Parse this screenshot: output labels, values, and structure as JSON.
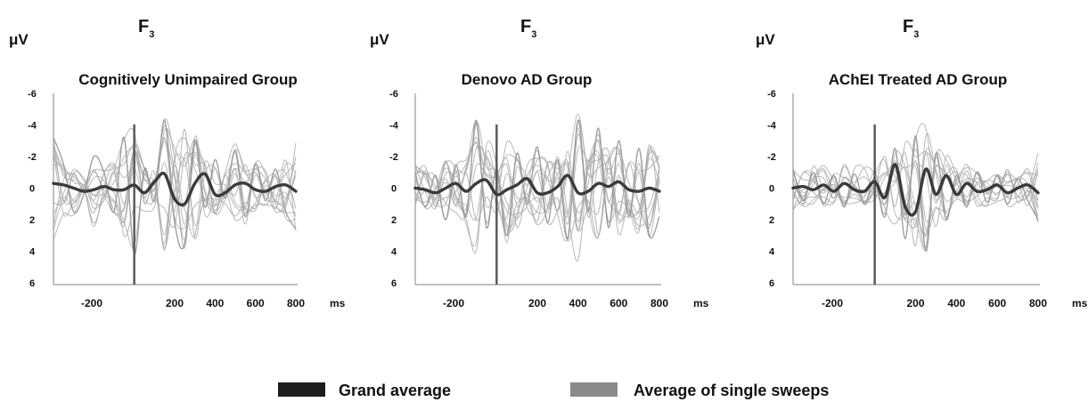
{
  "chart_data": [
    {
      "type": "line",
      "electrode_main": "F",
      "electrode_sub": "3",
      "ylabel": "μV",
      "xunit": "ms",
      "title": "Cognitively Unimpaired Group",
      "xlim": [
        -400,
        800
      ],
      "ylim": [
        6,
        -6
      ],
      "y_inverted": true,
      "x_ticks": [
        "-200",
        "200",
        "400",
        "600",
        "800"
      ],
      "y_ticks": [
        "-6",
        "-4",
        "-2",
        "0",
        "2",
        "4",
        "6"
      ],
      "stimulus_onset_ms": 0,
      "grid": false,
      "series": [
        {
          "name": "Grand average",
          "color": "#3a3a3a",
          "x": [
            -400,
            -350,
            -300,
            -250,
            -200,
            -150,
            -100,
            -50,
            0,
            50,
            100,
            150,
            200,
            250,
            300,
            350,
            400,
            450,
            500,
            550,
            600,
            650,
            700,
            750,
            800
          ],
          "y": [
            -0.3,
            -0.2,
            0.0,
            0.2,
            0.1,
            -0.1,
            0.1,
            0.1,
            -0.2,
            0.3,
            -0.4,
            -0.9,
            0.7,
            1.0,
            -0.3,
            -0.9,
            0.4,
            0.3,
            -0.2,
            -0.3,
            0.1,
            0.2,
            -0.1,
            -0.2,
            0.2
          ]
        },
        {
          "name": "Average of single sweeps",
          "color": "#9a9a9a",
          "x": [
            -400,
            -350,
            -300,
            -250,
            -200,
            -150,
            -100,
            -50,
            0,
            50,
            100,
            150,
            200,
            250,
            300,
            350,
            400,
            450,
            500,
            550,
            600,
            650,
            700,
            750,
            800
          ],
          "y": [
            -3.2,
            -1.5,
            1.5,
            0.4,
            -2.0,
            -1.0,
            1.5,
            -3.2,
            4.2,
            -1.2,
            0.8,
            -4.3,
            2.2,
            3.5,
            -3.0,
            1.2,
            -1.8,
            0.6,
            -2.3,
            1.8,
            -1.5,
            0.8,
            -1.2,
            1.5,
            2.6
          ]
        }
      ]
    },
    {
      "type": "line",
      "electrode_main": "F",
      "electrode_sub": "3",
      "ylabel": "μV",
      "xunit": "ms",
      "title": "Denovo AD Group",
      "xlim": [
        -400,
        800
      ],
      "ylim": [
        6,
        -6
      ],
      "y_inverted": true,
      "x_ticks": [
        "-200",
        "200",
        "400",
        "600",
        "800"
      ],
      "y_ticks": [
        "-6",
        "-4",
        "-2",
        "0",
        "2",
        "4",
        "6"
      ],
      "stimulus_onset_ms": 0,
      "grid": false,
      "series": [
        {
          "name": "Grand average",
          "color": "#3a3a3a",
          "x": [
            -400,
            -350,
            -300,
            -250,
            -200,
            -150,
            -100,
            -50,
            0,
            50,
            100,
            150,
            200,
            250,
            300,
            350,
            400,
            450,
            500,
            550,
            600,
            650,
            700,
            750,
            800
          ],
          "y": [
            0.0,
            0.1,
            0.3,
            0.0,
            -0.3,
            0.2,
            -0.3,
            -0.5,
            0.4,
            0.1,
            -0.2,
            -0.6,
            0.3,
            0.3,
            -0.1,
            -0.8,
            0.3,
            0.2,
            -0.3,
            -0.1,
            -0.4,
            0.1,
            0.2,
            0.0,
            0.2
          ]
        },
        {
          "name": "Average of single sweeps",
          "color": "#9a9a9a",
          "x": [
            -400,
            -350,
            -300,
            -250,
            -200,
            -150,
            -100,
            -50,
            0,
            50,
            100,
            150,
            200,
            250,
            300,
            350,
            400,
            450,
            500,
            550,
            600,
            650,
            700,
            750,
            800
          ],
          "y": [
            -1.0,
            1.2,
            -0.8,
            2.0,
            -1.5,
            1.8,
            -4.3,
            2.5,
            -1.2,
            3.0,
            -2.2,
            1.0,
            -2.6,
            2.2,
            -1.8,
            3.2,
            -4.3,
            1.5,
            -3.8,
            2.5,
            -3.0,
            1.8,
            -2.5,
            3.0,
            1.8
          ]
        }
      ]
    },
    {
      "type": "line",
      "electrode_main": "F",
      "electrode_sub": "3",
      "ylabel": "μV",
      "xunit": "ms",
      "title": "AChEI Treated AD Group",
      "xlim": [
        -400,
        800
      ],
      "ylim": [
        6,
        -6
      ],
      "y_inverted": true,
      "x_ticks": [
        "-200",
        "200",
        "400",
        "600",
        "800"
      ],
      "y_ticks": [
        "-6",
        "-4",
        "-2",
        "0",
        "2",
        "4",
        "6"
      ],
      "stimulus_onset_ms": 0,
      "grid": false,
      "series": [
        {
          "name": "Grand average",
          "color": "#3a3a3a",
          "x": [
            -400,
            -350,
            -300,
            -250,
            -200,
            -150,
            -100,
            -50,
            0,
            50,
            100,
            150,
            200,
            250,
            300,
            350,
            400,
            450,
            500,
            550,
            600,
            650,
            700,
            750,
            800
          ],
          "y": [
            0.0,
            -0.1,
            0.1,
            -0.2,
            0.2,
            -0.3,
            0.1,
            0.2,
            -0.4,
            0.6,
            -1.5,
            1.2,
            1.5,
            -1.2,
            0.4,
            -0.8,
            0.4,
            -0.3,
            0.2,
            0.1,
            -0.2,
            0.3,
            0.0,
            -0.2,
            0.3
          ]
        },
        {
          "name": "Average of single sweeps",
          "color": "#9a9a9a",
          "x": [
            -400,
            -350,
            -300,
            -250,
            -200,
            -150,
            -100,
            -50,
            0,
            50,
            100,
            150,
            200,
            250,
            300,
            350,
            400,
            450,
            500,
            550,
            600,
            650,
            700,
            750,
            800
          ],
          "y": [
            -1.2,
            0.8,
            -1.0,
            1.0,
            -0.8,
            1.2,
            -0.9,
            1.0,
            -0.6,
            1.8,
            -2.5,
            3.2,
            -3.3,
            4.0,
            -2.2,
            2.0,
            -0.8,
            1.2,
            -1.0,
            0.9,
            -0.8,
            1.0,
            -0.6,
            0.8,
            2.0
          ]
        }
      ]
    }
  ],
  "legend": {
    "items": [
      {
        "label": "Grand average",
        "color": "#1e1e1e"
      },
      {
        "label": "Average of single sweeps",
        "color": "#8a8a8a"
      }
    ]
  }
}
